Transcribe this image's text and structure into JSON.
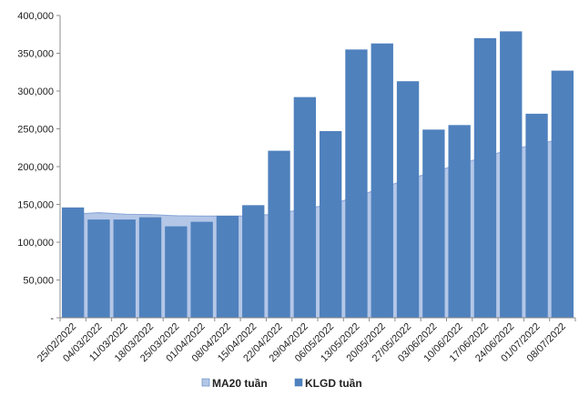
{
  "chart_data": {
    "type": "bar",
    "categories": [
      "25/02/2022",
      "04/03/2022",
      "11/03/2022",
      "18/03/2022",
      "25/03/2022",
      "01/04/2022",
      "08/04/2022",
      "15/04/2022",
      "22/04/2022",
      "29/04/2022",
      "06/05/2022",
      "13/05/2022",
      "20/05/2022",
      "27/05/2022",
      "03/06/2022",
      "10/06/2022",
      "17/06/2022",
      "24/06/2022",
      "01/07/2022",
      "08/07/2022"
    ],
    "series": [
      {
        "name": "MA20 tuần",
        "type": "area",
        "color": "#B4C7E7",
        "line_color": "#8FAADC",
        "values": [
          137000,
          139000,
          137000,
          136500,
          135000,
          134500,
          134500,
          134500,
          138000,
          144000,
          150000,
          160000,
          172000,
          183000,
          193000,
          203000,
          213000,
          223000,
          229000,
          237000
        ]
      },
      {
        "name": "KLGD tuần",
        "type": "bar",
        "color": "#4F81BD",
        "values": [
          146000,
          130000,
          130000,
          133000,
          121000,
          127000,
          135000,
          149000,
          221000,
          292000,
          247000,
          355000,
          363000,
          313000,
          249000,
          255000,
          370000,
          379000,
          270000,
          327000
        ]
      }
    ],
    "y_ticks": [
      "-",
      "50,000",
      "100,000",
      "150,000",
      "200,000",
      "250,000",
      "300,000",
      "350,000",
      "400,000"
    ],
    "ylim": [
      0,
      400000
    ],
    "grid": false,
    "legend_position": "bottom",
    "legend": [
      {
        "label": "MA20 tuần",
        "color": "#B4C7E7"
      },
      {
        "label": "KLGD tuần",
        "color": "#4F81BD"
      }
    ]
  }
}
